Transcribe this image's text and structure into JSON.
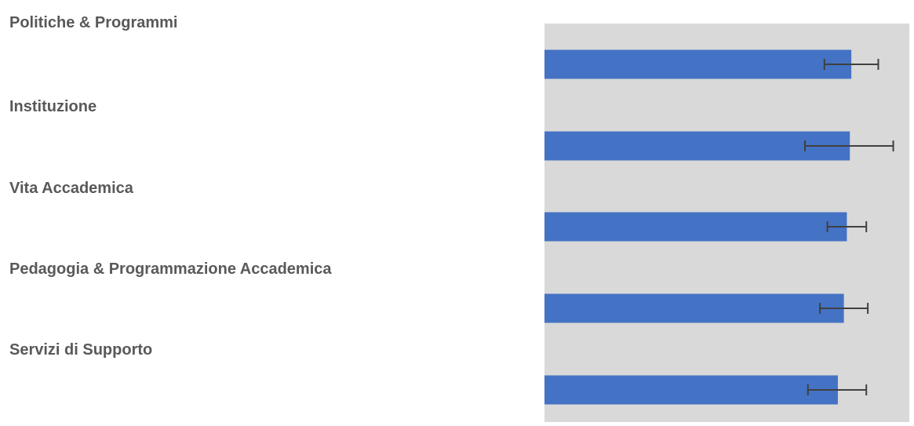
{
  "chart_data": {
    "type": "bar",
    "orientation": "horizontal",
    "categories": [
      "Politiche & Programmi",
      "Instituzione",
      "Vita Accademica",
      "Pedagogia & Programmazione Accademica",
      "Servizi di Supporto"
    ],
    "values": [
      4.1,
      4.08,
      4.04,
      4.0,
      3.92
    ],
    "error": [
      [
        3.74,
        4.46
      ],
      [
        3.48,
        4.66
      ],
      [
        3.78,
        4.3
      ],
      [
        3.68,
        4.32
      ],
      [
        3.52,
        4.3
      ]
    ],
    "xlim": [
      0,
      5
    ],
    "title": "",
    "xlabel": "",
    "ylabel": "",
    "grid": false,
    "colors": {
      "bar": "#4472C4",
      "plot_background": "#D9D9D9",
      "error_bar": "#404040",
      "label": "#595959"
    }
  }
}
